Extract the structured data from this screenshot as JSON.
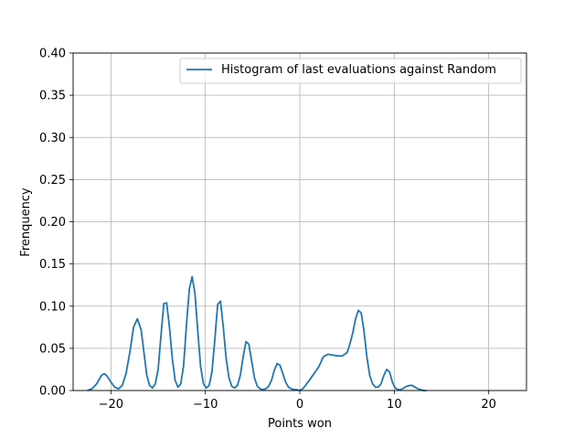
{
  "chart_data": {
    "type": "line",
    "title": "",
    "xlabel": "Points won",
    "ylabel": "Frenquency",
    "xlim": [
      -24,
      24
    ],
    "ylim": [
      0,
      0.4
    ],
    "x_ticks": [
      -20,
      -10,
      0,
      10,
      20
    ],
    "x_tick_labels": [
      "−20",
      "−10",
      "0",
      "10",
      "20"
    ],
    "y_ticks": [
      0.0,
      0.05,
      0.1,
      0.15,
      0.2,
      0.25,
      0.3,
      0.35,
      0.4
    ],
    "y_tick_labels": [
      "0.00",
      "0.05",
      "0.10",
      "0.15",
      "0.20",
      "0.25",
      "0.30",
      "0.35",
      "0.40"
    ],
    "grid": true,
    "legend_position": "top-right",
    "series": [
      {
        "name": "Histogram of last evaluations against Random",
        "color": "#1f77b4",
        "x": [
          -22.5,
          -22.0,
          -21.5,
          -21.2,
          -21.0,
          -20.7,
          -20.4,
          -20.0,
          -19.6,
          -19.2,
          -18.8,
          -18.4,
          -18.0,
          -17.6,
          -17.2,
          -16.8,
          -16.5,
          -16.2,
          -15.9,
          -15.6,
          -15.3,
          -15.0,
          -14.7,
          -14.4,
          -14.1,
          -13.8,
          -13.5,
          -13.2,
          -12.9,
          -12.6,
          -12.3,
          -12.0,
          -11.7,
          -11.4,
          -11.1,
          -10.8,
          -10.5,
          -10.2,
          -9.9,
          -9.6,
          -9.3,
          -9.0,
          -8.7,
          -8.4,
          -8.1,
          -7.8,
          -7.5,
          -7.2,
          -6.9,
          -6.6,
          -6.3,
          -6.0,
          -5.7,
          -5.4,
          -5.1,
          -4.8,
          -4.5,
          -4.2,
          -3.9,
          -3.6,
          -3.3,
          -3.0,
          -2.7,
          -2.4,
          -2.1,
          -1.8,
          -1.5,
          -1.2,
          -0.9,
          -0.6,
          -0.3,
          0.0,
          0.3,
          0.6,
          1.0,
          1.5,
          2.0,
          2.5,
          3.0,
          3.5,
          4.0,
          4.5,
          5.0,
          5.3,
          5.6,
          5.9,
          6.2,
          6.5,
          6.8,
          7.1,
          7.4,
          7.7,
          8.0,
          8.3,
          8.6,
          8.9,
          9.2,
          9.5,
          9.8,
          10.1,
          10.4,
          10.7,
          11.0,
          11.3,
          11.6,
          11.9,
          12.2,
          12.5,
          12.8,
          13.1,
          13.4
        ],
        "y": [
          0.0,
          0.002,
          0.008,
          0.014,
          0.018,
          0.02,
          0.017,
          0.01,
          0.004,
          0.002,
          0.006,
          0.02,
          0.045,
          0.075,
          0.085,
          0.072,
          0.045,
          0.018,
          0.006,
          0.003,
          0.008,
          0.025,
          0.065,
          0.103,
          0.104,
          0.075,
          0.038,
          0.012,
          0.004,
          0.008,
          0.03,
          0.078,
          0.12,
          0.135,
          0.115,
          0.07,
          0.028,
          0.008,
          0.003,
          0.006,
          0.022,
          0.06,
          0.102,
          0.106,
          0.075,
          0.038,
          0.015,
          0.005,
          0.003,
          0.006,
          0.018,
          0.04,
          0.058,
          0.055,
          0.035,
          0.015,
          0.005,
          0.002,
          0.001,
          0.002,
          0.005,
          0.012,
          0.024,
          0.032,
          0.03,
          0.02,
          0.01,
          0.004,
          0.002,
          0.001,
          0.001,
          0.0,
          0.002,
          0.006,
          0.012,
          0.02,
          0.028,
          0.04,
          0.043,
          0.042,
          0.041,
          0.041,
          0.045,
          0.055,
          0.068,
          0.085,
          0.095,
          0.092,
          0.07,
          0.04,
          0.018,
          0.008,
          0.004,
          0.004,
          0.008,
          0.018,
          0.025,
          0.022,
          0.01,
          0.003,
          0.001,
          0.001,
          0.003,
          0.005,
          0.006,
          0.006,
          0.004,
          0.002,
          0.001,
          0.0,
          0.0
        ]
      }
    ]
  }
}
